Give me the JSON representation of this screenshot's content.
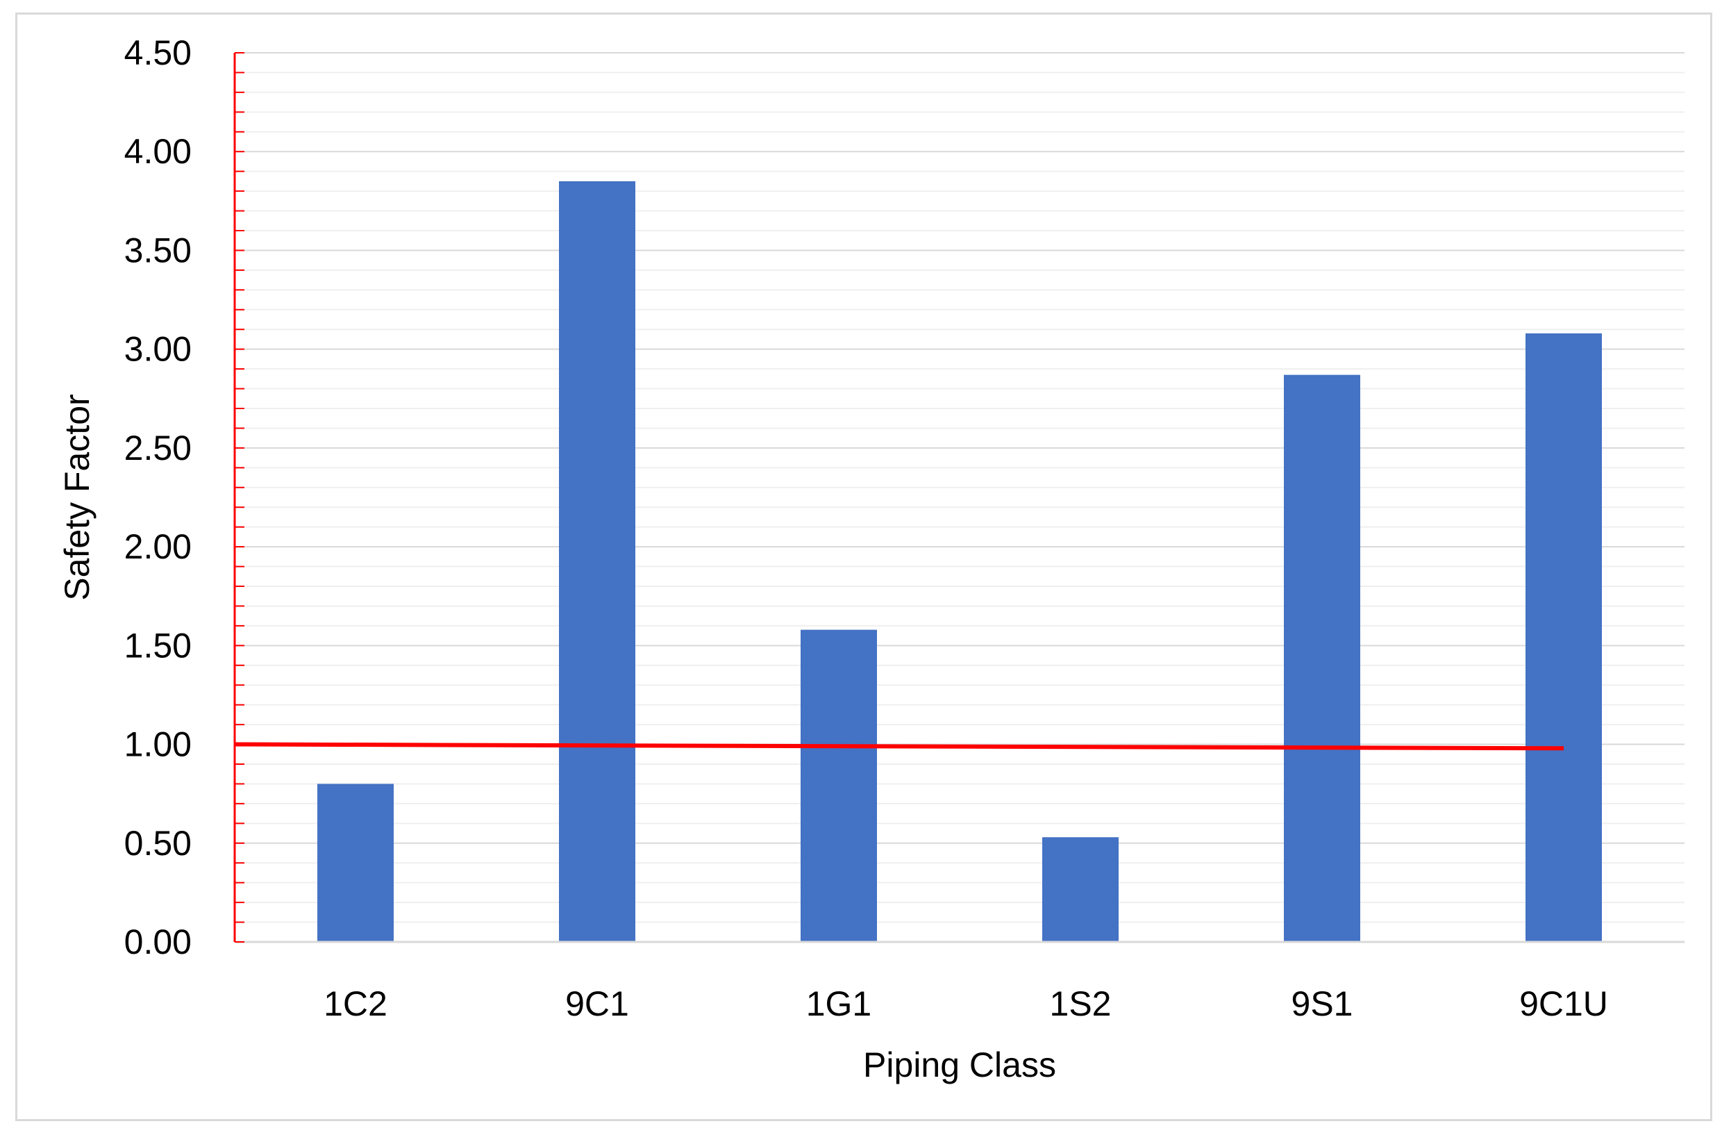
{
  "chart_data": {
    "type": "bar",
    "title": "",
    "xlabel": "Piping Class",
    "ylabel": "Safety Factor",
    "categories": [
      "1C2",
      "9C1",
      "1G1",
      "1S2",
      "9S1",
      "9C1U"
    ],
    "series": [
      {
        "values": [
          0.8,
          3.85,
          1.58,
          0.53,
          2.87,
          3.08
        ]
      }
    ],
    "ylim": [
      0,
      4.5
    ],
    "ytick_step": 0.5,
    "minor_gridline_step": 0.1,
    "y_tick_labels": [
      "0.00",
      "0.50",
      "1.00",
      "1.50",
      "2.00",
      "2.50",
      "3.00",
      "3.50",
      "4.00",
      "4.50"
    ],
    "reference_line": {
      "y_start": 1.0,
      "y_end": 0.98
    },
    "grid": true,
    "legend": "none",
    "colors": {
      "bar": "#4472c4",
      "reference_line": "#ff0000",
      "y_axis": "#ff0000",
      "major_grid": "#d9d9d9",
      "minor_grid": "#efefef"
    }
  }
}
